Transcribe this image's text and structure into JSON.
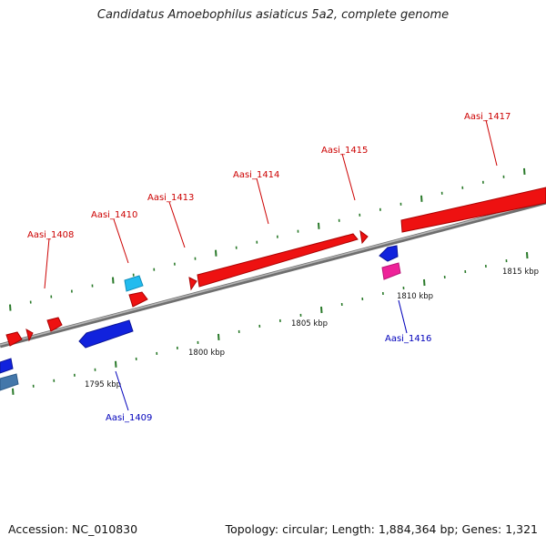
{
  "title": "Candidatus Amoebophilus asiaticus 5a2, complete genome",
  "footer": {
    "accession": "Accession: NC_010830",
    "summary": "Topology: circular; Length: 1,884,364 bp; Genes: 1,321"
  },
  "colors": {
    "forward_gene": "#ee1111",
    "reverse_gene": "#1122dd",
    "cyan_gene": "#22bbee",
    "steel_gene": "#4477aa",
    "magenta_gene": "#ee2299",
    "backbone": "#8a8a8a",
    "ticks": "#2a7a2a",
    "forward_label": "#cc0000",
    "reverse_label": "#0000bb"
  },
  "scale_labels": [
    "1795 kbp",
    "1800 kbp",
    "1805 kbp",
    "1810 kbp",
    "1815 kbp"
  ],
  "gene_labels": [
    {
      "id": "Aasi_1408",
      "strand": "forward"
    },
    {
      "id": "Aasi_1410",
      "strand": "forward"
    },
    {
      "id": "Aasi_1413",
      "strand": "forward"
    },
    {
      "id": "Aasi_1414",
      "strand": "forward"
    },
    {
      "id": "Aasi_1415",
      "strand": "forward"
    },
    {
      "id": "Aasi_1417",
      "strand": "forward"
    },
    {
      "id": "Aasi_1409",
      "strand": "reverse"
    },
    {
      "id": "Aasi_1416",
      "strand": "reverse"
    }
  ]
}
